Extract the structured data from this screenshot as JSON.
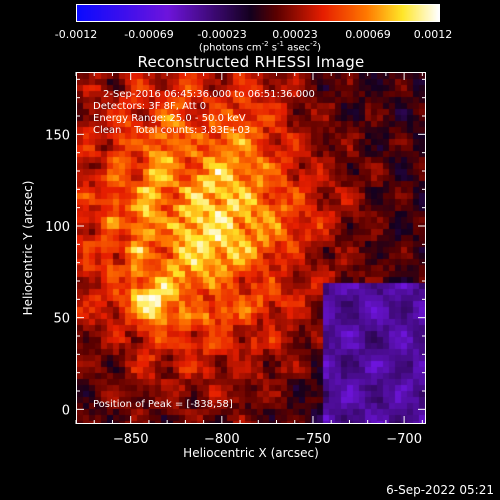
{
  "colorbar": {
    "ticks": [
      "-0.0012",
      "-0.00069",
      "-0.00023",
      "0.00023",
      "0.00069",
      "0.0012"
    ],
    "units": "(photons cm",
    "units_exp1": "-2",
    "units_mid": " s",
    "units_exp2": "-1",
    "units_tail": " asec",
    "units_exp3": "-2",
    "units_close": ")"
  },
  "chart_data": {
    "type": "heatmap",
    "title": "Reconstructed RHESSI Image",
    "xlabel": "Heliocentric X (arcsec)",
    "ylabel": "Heliocentric Y (arcsec)",
    "xlim": [
      -880,
      -688
    ],
    "ylim": [
      -8,
      184
    ],
    "xticks": [
      -850,
      -800,
      -750,
      -700
    ],
    "xtick_labels": [
      "−850",
      "−800",
      "−750",
      "−700"
    ],
    "yticks": [
      0,
      50,
      100,
      150
    ],
    "ytick_labels": [
      "0",
      "50",
      "100",
      "150"
    ],
    "color_range": [
      -0.0012,
      0.0012
    ],
    "peak_position": [
      -838,
      58
    ],
    "annotations": {
      "time": "2-Sep-2016 06:45:36.000 to 06:51:36.000",
      "detectors": "Detectors: 3F 8F, Att 0",
      "energy": "Energy Range: 25.0 - 50.0 keV",
      "method": "Clean    Total counts: 3.83E+03",
      "peak": "Position of Peak = [-838,58]"
    }
  },
  "footer": {
    "timestamp": "6-Sep-2022 05:21"
  }
}
